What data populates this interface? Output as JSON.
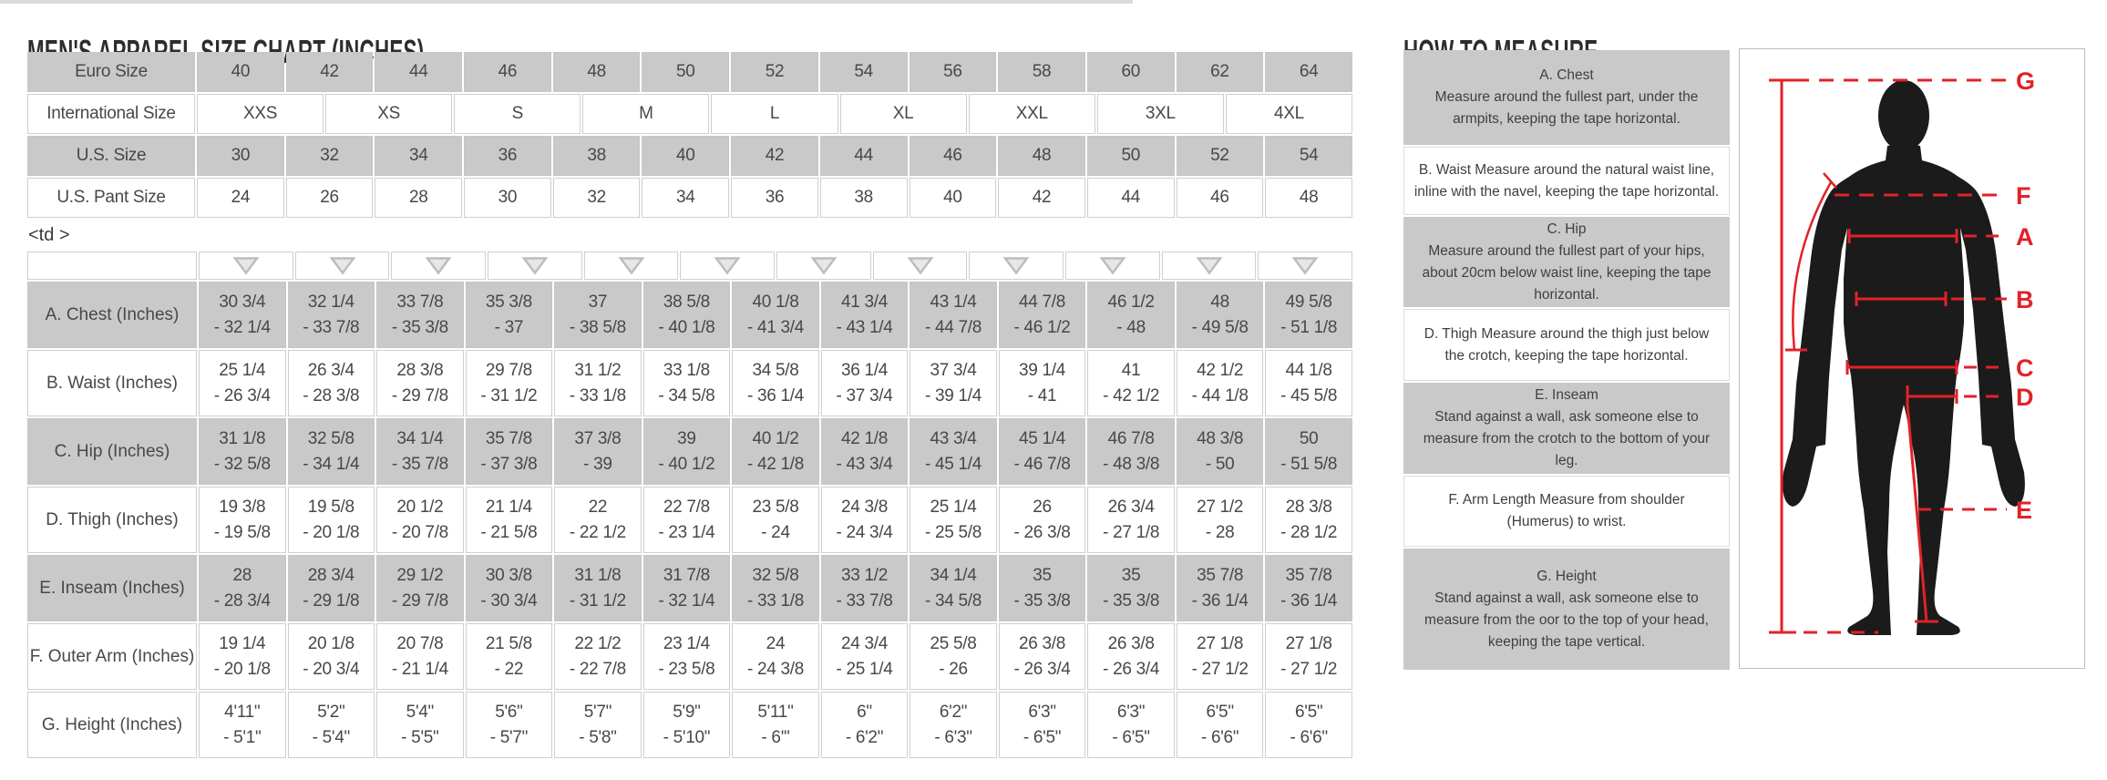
{
  "left": {
    "title": "MEN'S APPAREL SIZE CHART (INCHES)",
    "stray_text": "<td >",
    "conversion_table": {
      "rows": [
        {
          "label": "Euro Size",
          "shade": "gray",
          "cells": [
            "40",
            "42",
            "44",
            "46",
            "48",
            "50",
            "52",
            "54",
            "56",
            "58",
            "60",
            "62",
            "64"
          ]
        },
        {
          "label": "International Size",
          "shade": "white",
          "cells": [
            "XXS",
            "XS",
            "S",
            "M",
            "L",
            "XL",
            "XXL",
            "3XL",
            "4XL"
          ]
        },
        {
          "label": "U.S. Size",
          "shade": "gray",
          "cells": [
            "30",
            "32",
            "34",
            "36",
            "38",
            "40",
            "42",
            "44",
            "46",
            "48",
            "50",
            "52",
            "54"
          ]
        },
        {
          "label": "U.S. Pant Size",
          "shade": "white",
          "cells": [
            "24",
            "26",
            "28",
            "30",
            "32",
            "34",
            "36",
            "38",
            "40",
            "42",
            "44",
            "46",
            "48"
          ]
        }
      ]
    },
    "measurement_table": {
      "header_icon": "sort-down-triangle",
      "header_icon_count": 12,
      "rows": [
        {
          "label": "A. Chest (Inches)",
          "shade": "gray",
          "cells": [
            [
              "30 3/4",
              "- 32 1/4"
            ],
            [
              "32 1/4",
              "- 33 7/8"
            ],
            [
              "33 7/8",
              "- 35 3/8"
            ],
            [
              "35 3/8",
              "- 37"
            ],
            [
              "37",
              "- 38 5/8"
            ],
            [
              "38 5/8",
              "- 40 1/8"
            ],
            [
              "40 1/8",
              "- 41 3/4"
            ],
            [
              "41 3/4",
              "- 43 1/4"
            ],
            [
              "43 1/4",
              "- 44 7/8"
            ],
            [
              "44 7/8",
              "- 46 1/2"
            ],
            [
              "46 1/2",
              "- 48"
            ],
            [
              "48",
              "- 49 5/8"
            ],
            [
              "49 5/8",
              "- 51 1/8"
            ]
          ]
        },
        {
          "label": "B. Waist (Inches)",
          "shade": "white",
          "cells": [
            [
              "25 1/4",
              "- 26 3/4"
            ],
            [
              "26 3/4",
              "- 28 3/8"
            ],
            [
              "28 3/8",
              "- 29 7/8"
            ],
            [
              "29 7/8",
              "- 31 1/2"
            ],
            [
              "31 1/2",
              "- 33 1/8"
            ],
            [
              "33 1/8",
              "- 34 5/8"
            ],
            [
              "34 5/8",
              "- 36 1/4"
            ],
            [
              "36 1/4",
              "- 37 3/4"
            ],
            [
              "37 3/4",
              "- 39 1/4"
            ],
            [
              "39 1/4",
              "- 41"
            ],
            [
              "41",
              "- 42 1/2"
            ],
            [
              "42 1/2",
              "- 44 1/8"
            ],
            [
              "44 1/8",
              "- 45 5/8"
            ]
          ]
        },
        {
          "label": "C. Hip (Inches)",
          "shade": "gray",
          "cells": [
            [
              "31 1/8",
              "- 32 5/8"
            ],
            [
              "32 5/8",
              "- 34 1/4"
            ],
            [
              "34 1/4",
              "- 35 7/8"
            ],
            [
              "35 7/8",
              "- 37 3/8"
            ],
            [
              "37 3/8",
              "- 39"
            ],
            [
              "39",
              "- 40 1/2"
            ],
            [
              "40 1/2",
              "- 42 1/8"
            ],
            [
              "42 1/8",
              "- 43 3/4"
            ],
            [
              "43 3/4",
              "- 45 1/4"
            ],
            [
              "45 1/4",
              "- 46 7/8"
            ],
            [
              "46 7/8",
              "- 48 3/8"
            ],
            [
              "48 3/8",
              "- 50"
            ],
            [
              "50",
              "- 51 5/8"
            ]
          ]
        },
        {
          "label": "D. Thigh (Inches)",
          "shade": "white",
          "cells": [
            [
              "19 3/8",
              "- 19 5/8"
            ],
            [
              "19 5/8",
              "- 20 1/8"
            ],
            [
              "20 1/2",
              "- 20 7/8"
            ],
            [
              "21 1/4",
              "- 21 5/8"
            ],
            [
              "22",
              "- 22 1/2"
            ],
            [
              "22 7/8",
              "- 23 1/4"
            ],
            [
              "23 5/8",
              "- 24"
            ],
            [
              "24 3/8",
              "- 24 3/4"
            ],
            [
              "25 1/4",
              "- 25 5/8"
            ],
            [
              "26",
              "- 26 3/8"
            ],
            [
              "26 3/4",
              "- 27 1/8"
            ],
            [
              "27 1/2",
              "- 28"
            ],
            [
              "28 3/8",
              "- 28 1/2"
            ]
          ]
        },
        {
          "label": "E. Inseam (Inches)",
          "shade": "gray",
          "cells": [
            [
              "28",
              "- 28 3/4"
            ],
            [
              "28 3/4",
              "- 29 1/8"
            ],
            [
              "29 1/2",
              "- 29 7/8"
            ],
            [
              "30 3/8",
              "- 30 3/4"
            ],
            [
              "31 1/8",
              "- 31 1/2"
            ],
            [
              "31 7/8",
              "- 32 1/4"
            ],
            [
              "32 5/8",
              "- 33 1/8"
            ],
            [
              "33 1/2",
              "- 33 7/8"
            ],
            [
              "34 1/4",
              "- 34 5/8"
            ],
            [
              "35",
              "- 35 3/8"
            ],
            [
              "35",
              "- 35 3/8"
            ],
            [
              "35 7/8",
              "- 36 1/4"
            ],
            [
              "35 7/8",
              "- 36 1/4"
            ]
          ]
        },
        {
          "label": "F. Outer Arm (Inches)",
          "shade": "white",
          "cells": [
            [
              "19 1/4",
              "- 20 1/8"
            ],
            [
              "20 1/8",
              "- 20 3/4"
            ],
            [
              "20 7/8",
              "- 21 1/4"
            ],
            [
              "21 5/8",
              "- 22"
            ],
            [
              "22 1/2",
              "- 22 7/8"
            ],
            [
              "23 1/4",
              "- 23 5/8"
            ],
            [
              "24",
              "- 24 3/8"
            ],
            [
              "24 3/4",
              "- 25 1/4"
            ],
            [
              "25 5/8",
              "- 26"
            ],
            [
              "26 3/8",
              "- 26 3/4"
            ],
            [
              "26 3/8",
              "- 26 3/4"
            ],
            [
              "27 1/8",
              "- 27 1/2"
            ],
            [
              "27 1/8",
              "- 27 1/2"
            ]
          ]
        },
        {
          "label": "G. Height (Inches)",
          "shade": "white",
          "cells": [
            [
              "4'11\"",
              "- 5'1\""
            ],
            [
              "5'2\"",
              "- 5'4\""
            ],
            [
              "5'4\"",
              "- 5'5\""
            ],
            [
              "5'6\"",
              "- 5'7\""
            ],
            [
              "5'7\"",
              "- 5'8\""
            ],
            [
              "5'9\"",
              "- 5'10\""
            ],
            [
              "5'11\"",
              "- 6'\""
            ],
            [
              "6\"",
              "- 6'2\""
            ],
            [
              "6'2\"",
              "- 6'3\""
            ],
            [
              "6'3\"",
              "- 6'5\""
            ],
            [
              "6'3\"",
              "- 6'5\""
            ],
            [
              "6'5\"",
              "- 6'6\""
            ],
            [
              "6'5\"",
              "- 6'6\""
            ]
          ]
        }
      ]
    }
  },
  "right": {
    "title": "HOW TO MEASURE",
    "instructions": [
      {
        "title": "A. Chest",
        "shade": "gray",
        "text": "Measure around the fullest part, under the armpits, keeping the tape horizontal."
      },
      {
        "title": "",
        "shade": "white",
        "text": "B. Waist Measure around the natural waist line, inline with the navel, keeping the tape horizontal."
      },
      {
        "title": "C. Hip",
        "shade": "gray",
        "text": "Measure around the fullest part of your hips, about 20cm below waist line, keeping the tape horizontal."
      },
      {
        "title": "",
        "shade": "white",
        "text": "D. Thigh Measure around the thigh just below the crotch, keeping the tape horizontal."
      },
      {
        "title": "E. Inseam",
        "shade": "gray",
        "text": "Stand against a wall, ask someone else to measure from the crotch to the bottom of your leg."
      },
      {
        "title": "",
        "shade": "white",
        "text": "F. Arm Length Measure from shoulder (Humerus) to wrist."
      },
      {
        "title": "G. Height",
        "shade": "gray",
        "text": "Stand against a wall, ask someone else to measure from the oor to the top of your head, keeping the tape vertical."
      }
    ],
    "figure_labels": [
      "G",
      "F",
      "A",
      "B",
      "C",
      "D",
      "E"
    ],
    "colors": {
      "accent_red": "#e12228",
      "cell_gray": "#c9c9c9",
      "silhouette_black": "#1b1b1b"
    }
  }
}
